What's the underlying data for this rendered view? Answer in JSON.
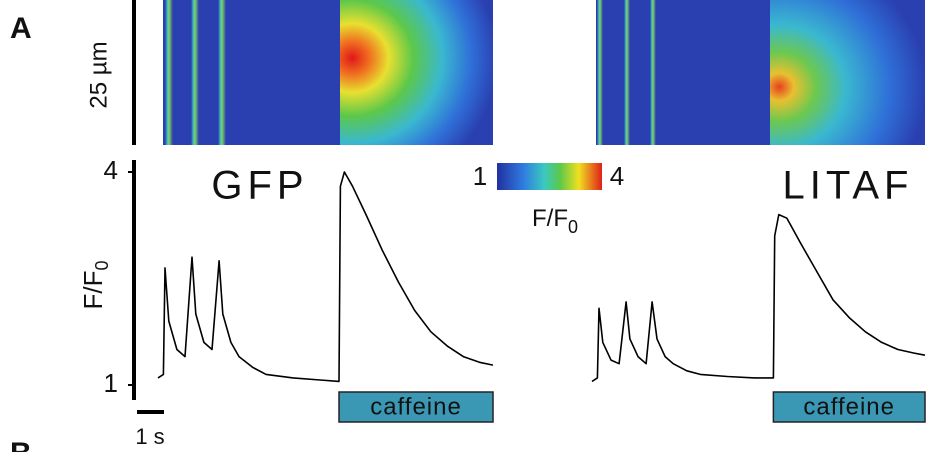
{
  "figure": {
    "panel_label": "A",
    "next_panel_label": "B",
    "space_scale": "25 µm",
    "time_scale": "1 s",
    "y_label": "F/F",
    "y_label_sub": "0",
    "colorbar": {
      "range": [
        1,
        4
      ],
      "label": "F/F",
      "label_sub": "0"
    }
  },
  "chart_data": [
    {
      "type": "line",
      "title": "GFP",
      "color": "#000000",
      "x": [
        0,
        0.2,
        0.26,
        0.4,
        0.7,
        1.0,
        1.26,
        1.4,
        1.7,
        2.0,
        2.26,
        2.4,
        2.7,
        3.0,
        3.5,
        4.0,
        5.0,
        6.0,
        6.7,
        6.75,
        6.9,
        7.2,
        7.7,
        8.3,
        8.9,
        9.5,
        10.1,
        10.7,
        11.3,
        11.9,
        12.4
      ],
      "values": [
        1.1,
        1.15,
        2.65,
        1.9,
        1.5,
        1.4,
        2.8,
        2.0,
        1.6,
        1.5,
        2.75,
        2.0,
        1.6,
        1.4,
        1.25,
        1.15,
        1.1,
        1.07,
        1.05,
        3.8,
        4.0,
        3.8,
        3.4,
        2.9,
        2.45,
        2.05,
        1.75,
        1.55,
        1.4,
        1.32,
        1.28
      ],
      "xlim": [
        0,
        12.4
      ],
      "ylim": [
        1,
        4
      ],
      "yticks": [
        1,
        4
      ],
      "stimulus": {
        "label": "caffeine",
        "start": 6.7
      }
    },
    {
      "type": "line",
      "title": "LITAF",
      "color": "#000000",
      "x": [
        0,
        0.2,
        0.26,
        0.4,
        0.7,
        1.0,
        1.26,
        1.4,
        1.7,
        2.0,
        2.22,
        2.4,
        2.7,
        3.0,
        3.5,
        4.0,
        5.0,
        6.0,
        6.7,
        6.75,
        6.9,
        7.2,
        7.7,
        8.3,
        8.9,
        9.5,
        10.1,
        10.7,
        11.3,
        11.9,
        12.3
      ],
      "values": [
        1.05,
        1.1,
        2.08,
        1.6,
        1.35,
        1.3,
        2.17,
        1.65,
        1.4,
        1.3,
        2.17,
        1.65,
        1.4,
        1.3,
        1.2,
        1.15,
        1.12,
        1.1,
        1.1,
        3.1,
        3.4,
        3.35,
        3.0,
        2.6,
        2.2,
        1.95,
        1.75,
        1.6,
        1.5,
        1.45,
        1.42
      ],
      "xlim": [
        0,
        12.3
      ],
      "ylim": [
        1,
        4
      ],
      "stimulus": {
        "label": "caffeine",
        "start": 6.7
      }
    }
  ]
}
